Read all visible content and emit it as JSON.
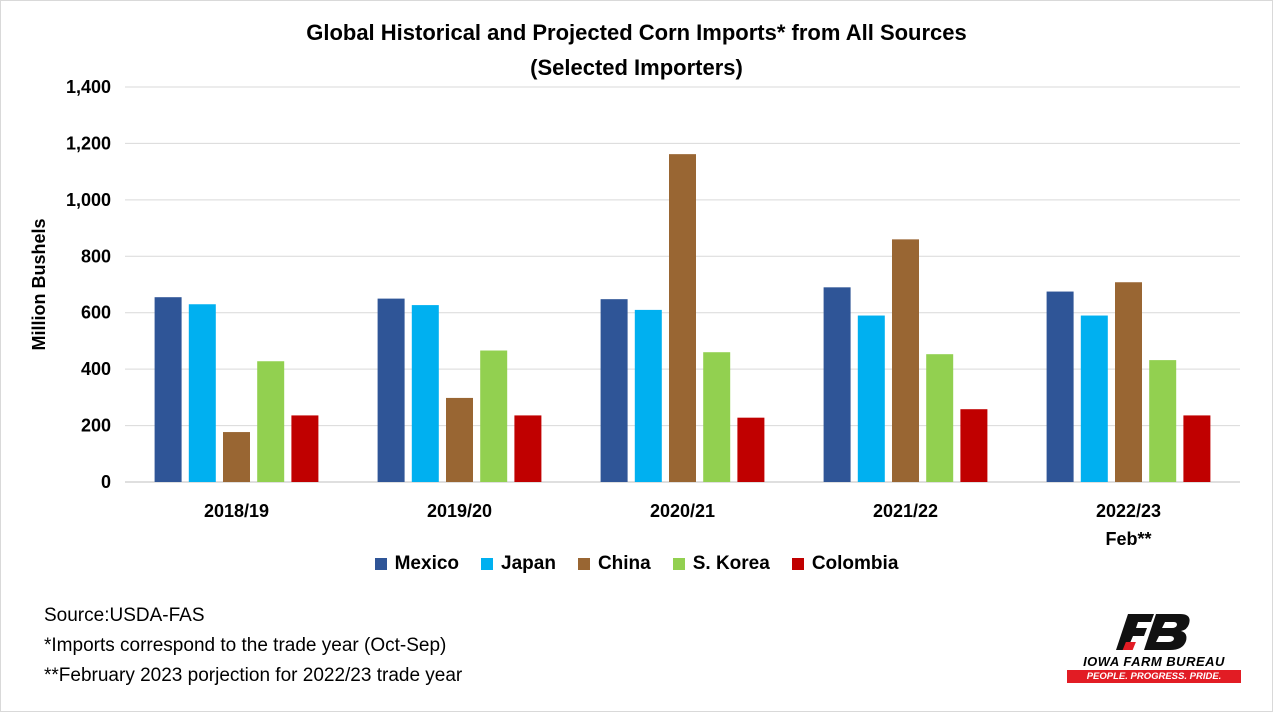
{
  "chart_data": {
    "type": "bar",
    "title_lines": [
      "Global Historical and Projected Corn Imports* from All Sources",
      "(Selected Importers)"
    ],
    "ylabel": "Million Bushels",
    "ylim": [
      0,
      1400
    ],
    "yticks": [
      "0",
      "200",
      "400",
      "600",
      "800",
      "1,000",
      "1,200",
      "1,400"
    ],
    "grid": true,
    "legend_position": "bottom",
    "categories": [
      "2018/19",
      "2019/20",
      "2020/21",
      "2021/22",
      "2022/23"
    ],
    "category_sublabels": [
      "",
      "",
      "",
      "",
      "Feb**"
    ],
    "series": [
      {
        "name": "Mexico",
        "color": "#2f5597",
        "values": [
          655,
          650,
          648,
          690,
          675
        ]
      },
      {
        "name": "Japan",
        "color": "#00b0f0",
        "values": [
          630,
          627,
          610,
          590,
          590
        ]
      },
      {
        "name": "China",
        "color": "#996633",
        "values": [
          177,
          298,
          1162,
          860,
          708
        ]
      },
      {
        "name": "S. Korea",
        "color": "#92d050",
        "values": [
          428,
          466,
          460,
          453,
          432
        ]
      },
      {
        "name": "Colombia",
        "color": "#c00000",
        "values": [
          236,
          236,
          228,
          258,
          236
        ]
      }
    ]
  },
  "notes": {
    "source": "Source:USDA-FAS",
    "note1": "*Imports correspond to the trade year (Oct-Sep)",
    "note2": "**February 2023 porjection for 2022/23 trade year"
  },
  "logo": {
    "name": "IOWA FARM BUREAU",
    "tagline": "PEOPLE. PROGRESS. PRIDE.",
    "icon": "fb-logo-icon"
  }
}
